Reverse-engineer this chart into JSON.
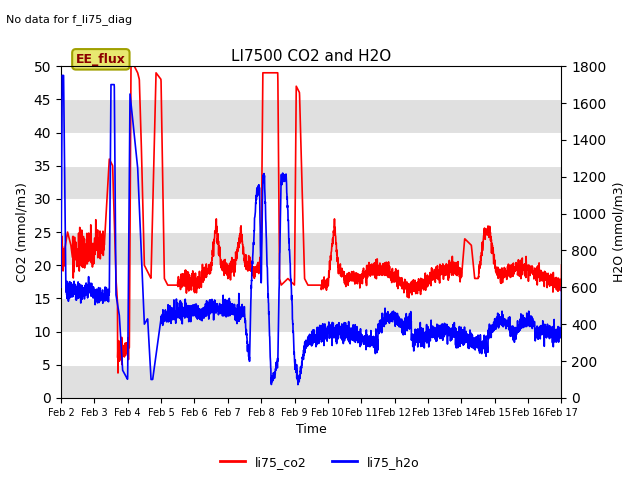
{
  "title": "LI7500 CO2 and H2O",
  "subtitle": "No data for f_li75_diag",
  "xlabel": "Time",
  "ylabel_left": "CO2 (mmol/m3)",
  "ylabel_right": "H2O (mmol/m3)",
  "legend_labels": [
    "li75_co2",
    "li75_h2o"
  ],
  "legend_colors": [
    "red",
    "blue"
  ],
  "annotation_text": "EE_flux",
  "ylim_left": [
    0,
    50
  ],
  "ylim_right": [
    0,
    1800
  ],
  "fig_bg_color": "#ffffff",
  "plot_bg_color": "#ffffff",
  "grid_band_color": "#e0e0e0",
  "co2_color": "red",
  "h2o_color": "blue",
  "linewidth": 1.2,
  "x_tick_labels": [
    "Feb 2",
    "Feb 3",
    "Feb 4",
    "Feb 5",
    "Feb 6",
    "Feb 7",
    "Feb 8",
    "Feb 9",
    "Feb 10",
    "Feb 11",
    "Feb 12",
    "Feb 13",
    "Feb 14",
    "Feb 15",
    "Feb 16",
    "Feb 17"
  ],
  "yticks_left": [
    0,
    5,
    10,
    15,
    20,
    25,
    30,
    35,
    40,
    45,
    50
  ],
  "yticks_right": [
    0,
    200,
    400,
    600,
    800,
    1000,
    1200,
    1400,
    1600,
    1800
  ]
}
